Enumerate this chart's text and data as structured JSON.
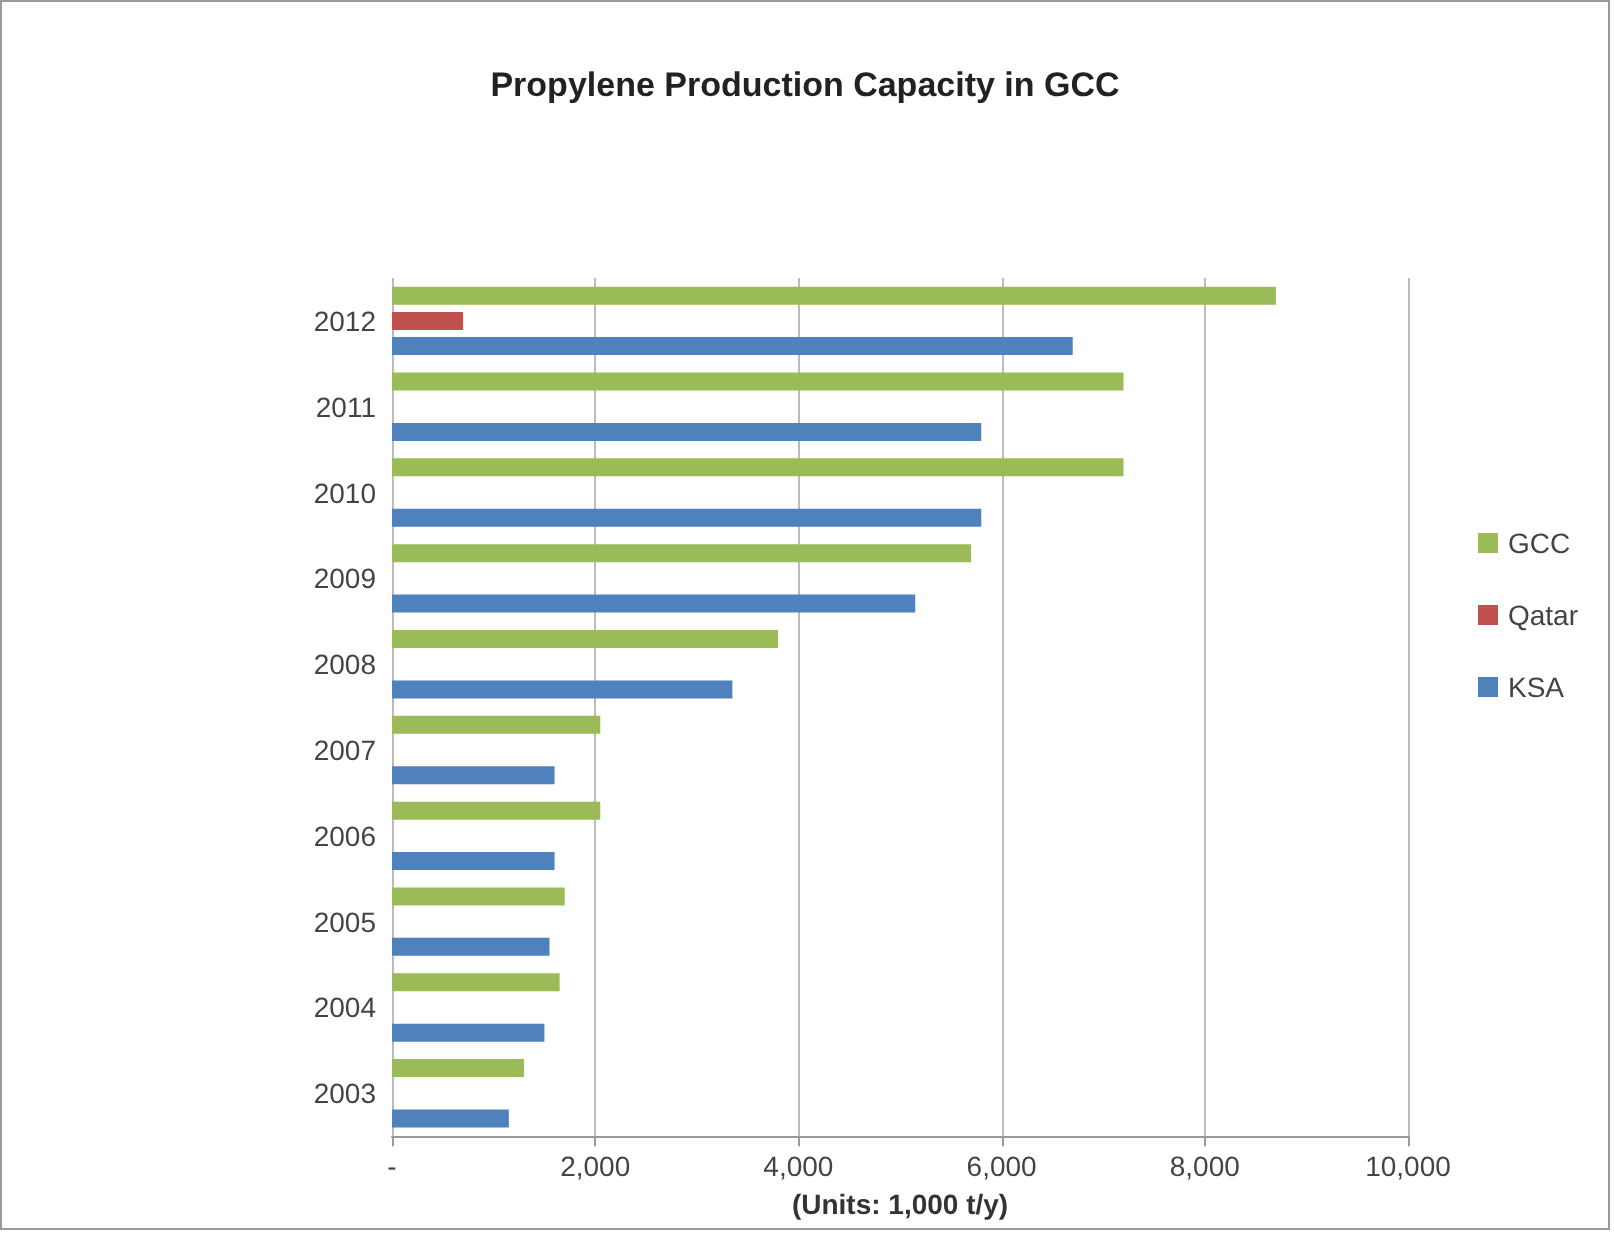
{
  "chart_data": {
    "type": "bar",
    "orientation": "horizontal",
    "title": "Propylene Production Capacity in GCC",
    "xlabel": "(Units: 1,000 t/y)",
    "categories": [
      "2012",
      "2011",
      "2010",
      "2009",
      "2008",
      "2007",
      "2006",
      "2005",
      "2004",
      "2003"
    ],
    "series": [
      {
        "name": "GCC",
        "color": "#9bbb59",
        "values": [
          8700,
          7200,
          7200,
          5700,
          3800,
          2050,
          2050,
          1700,
          1650,
          1300
        ]
      },
      {
        "name": "Qatar",
        "color": "#c0504d",
        "values": [
          700,
          null,
          null,
          null,
          null,
          null,
          null,
          null,
          null,
          null
        ]
      },
      {
        "name": "KSA",
        "color": "#4f81bd",
        "values": [
          6700,
          5800,
          5800,
          5150,
          3350,
          1600,
          1600,
          1550,
          1500,
          1150
        ]
      }
    ],
    "xlim": [
      0,
      10000
    ],
    "xticks": [
      {
        "value": 0,
        "label": "-"
      },
      {
        "value": 2000,
        "label": "2,000"
      },
      {
        "value": 4000,
        "label": "4,000"
      },
      {
        "value": 6000,
        "label": "6,000"
      },
      {
        "value": 8000,
        "label": "8,000"
      },
      {
        "value": 10000,
        "label": "10,000"
      }
    ],
    "grid": "x",
    "legend": "right"
  }
}
